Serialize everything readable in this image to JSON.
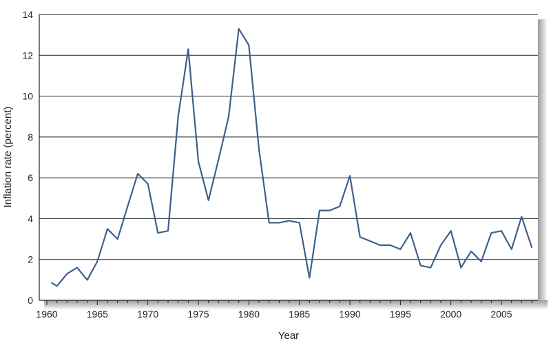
{
  "chart_data": {
    "type": "line",
    "xlabel": "Year",
    "ylabel": "Inflation rate (percent)",
    "xlim": [
      1960,
      2008
    ],
    "ylim": [
      0,
      14
    ],
    "xticks": [
      1960,
      1965,
      1970,
      1975,
      1980,
      1985,
      1990,
      1995,
      2000,
      2005
    ],
    "yticks": [
      0,
      2,
      4,
      6,
      8,
      10,
      12,
      14
    ],
    "grid": "horizontal",
    "series": [
      {
        "x": [
          1960.5,
          1961,
          1962,
          1963,
          1964,
          1965,
          1966,
          1967,
          1968,
          1969,
          1970,
          1971,
          1972,
          1973,
          1974,
          1975,
          1976,
          1977,
          1978,
          1979,
          1980,
          1981,
          1982,
          1983,
          1984,
          1985,
          1986,
          1987,
          1988,
          1989,
          1990,
          1991,
          1992,
          1993,
          1994,
          1995,
          1996,
          1997,
          1998,
          1999,
          2000,
          2001,
          2002,
          2003,
          2004,
          2005,
          2006,
          2007,
          2008
        ],
        "values": [
          0.85,
          0.7,
          1.3,
          1.6,
          1.0,
          1.9,
          3.5,
          3.0,
          4.6,
          6.2,
          5.7,
          3.3,
          3.4,
          9.0,
          12.3,
          6.8,
          4.9,
          6.9,
          9.0,
          13.3,
          12.5,
          7.4,
          3.8,
          3.8,
          3.9,
          3.8,
          1.1,
          4.4,
          4.4,
          4.6,
          6.1,
          3.1,
          2.9,
          2.7,
          2.7,
          2.5,
          3.3,
          1.7,
          1.6,
          2.7,
          3.4,
          1.6,
          2.4,
          1.9,
          3.3,
          3.4,
          2.5,
          4.1,
          2.6
        ]
      }
    ]
  },
  "colors": {
    "series": "#3d5f8c",
    "frame_shadow": "#b5b5b5"
  }
}
